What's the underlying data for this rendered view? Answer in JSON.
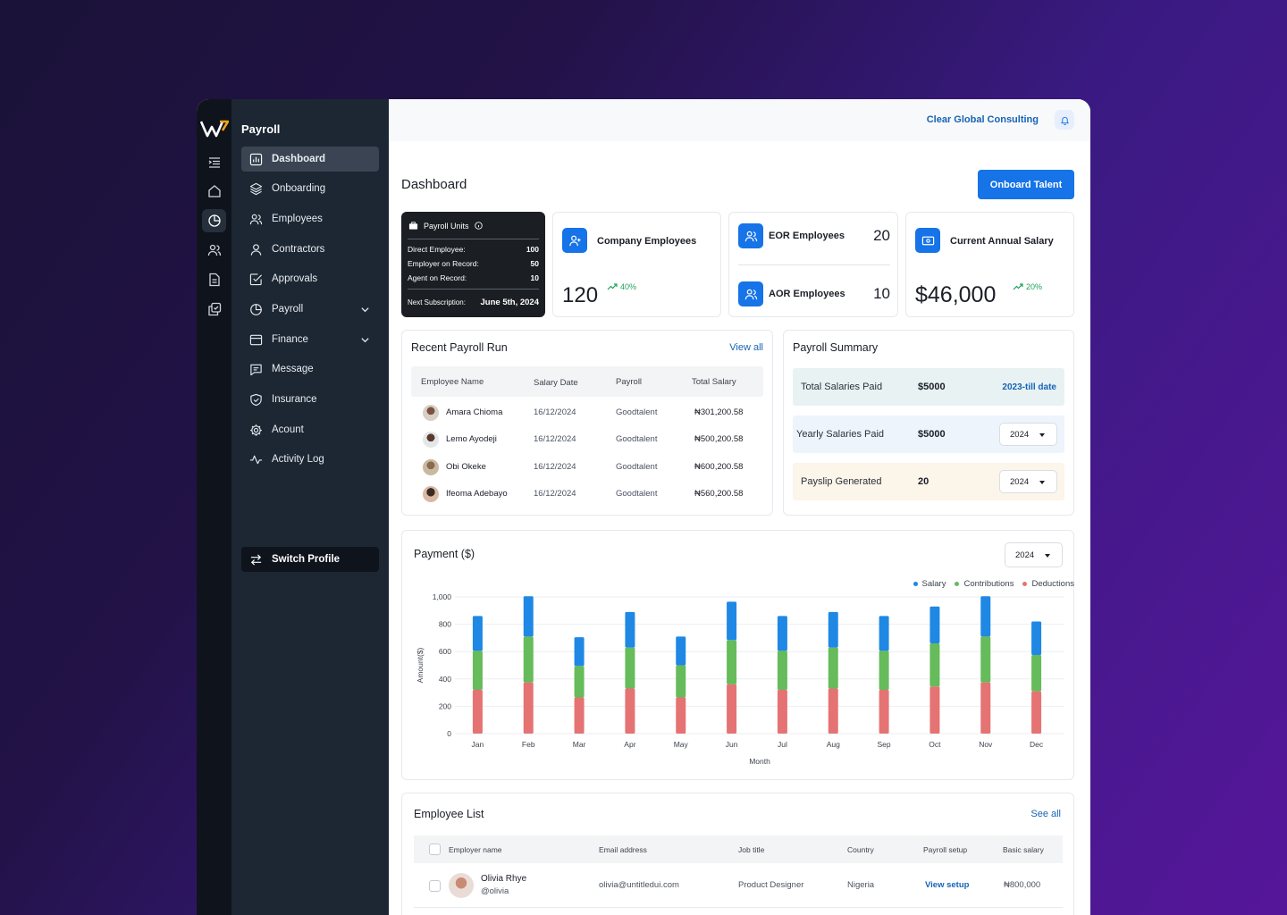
{
  "app": {
    "section": "Payroll",
    "company": "Clear Global Consulting"
  },
  "colors": {
    "accent": "#1673e8",
    "salary": "#1f88e5",
    "contributions": "#66bb5b",
    "deductions": "#e57373",
    "trend_up": "#1ea35a"
  },
  "sidebar": {
    "items": [
      {
        "label": "Dashboard",
        "icon": "bar-chart-icon",
        "active": true
      },
      {
        "label": "Onboarding",
        "icon": "layers-icon"
      },
      {
        "label": "Employees",
        "icon": "users-icon"
      },
      {
        "label": "Contractors",
        "icon": "user-icon"
      },
      {
        "label": "Approvals",
        "icon": "check-square-icon"
      },
      {
        "label": "Payroll",
        "icon": "pie-chart-icon",
        "expandable": true
      },
      {
        "label": "Finance",
        "icon": "wallet-icon",
        "expandable": true
      },
      {
        "label": "Message",
        "icon": "message-icon"
      },
      {
        "label": "Insurance",
        "icon": "shield-icon"
      },
      {
        "label": "Acount",
        "icon": "gear-icon"
      },
      {
        "label": "Activity Log",
        "icon": "activity-icon"
      }
    ],
    "switch_profile": "Switch Profile"
  },
  "dashboard": {
    "title": "Dashboard",
    "onboard_button": "Onboard Talent",
    "payroll_units": {
      "title": "Payroll Units",
      "rows": [
        {
          "label": "Direct Employee:",
          "value": "100"
        },
        {
          "label": "Employer on Record:",
          "value": "50"
        },
        {
          "label": "Agent on Record:",
          "value": "10"
        }
      ],
      "next_label": "Next Subscription:",
      "next_value": "June 5th, 2024"
    },
    "company_employees": {
      "label": "Company Employees",
      "value": "120",
      "trend": "40%"
    },
    "eor": {
      "label": "EOR Employees",
      "value": "20"
    },
    "aor": {
      "label": "AOR Employees",
      "value": "10"
    },
    "salary": {
      "label": "Current Annual Salary",
      "value": "$46,000",
      "trend": "20%"
    }
  },
  "recent_payroll": {
    "title": "Recent Payroll Run",
    "view_all": "View all",
    "columns": [
      "Employee Name",
      "Salary Date",
      "Payroll",
      "Total Salary"
    ],
    "rows": [
      {
        "name": "Amara Chioma",
        "date": "16/12/2024",
        "payroll": "Goodtalent",
        "total": "₦301,200.58"
      },
      {
        "name": "Lemo Ayodeji",
        "date": "16/12/2024",
        "payroll": "Goodtalent",
        "total": "₦500,200.58"
      },
      {
        "name": "Obi Okeke",
        "date": "16/12/2024",
        "payroll": "Goodtalent",
        "total": "₦600,200.58"
      },
      {
        "name": "Ifeoma Adebayo",
        "date": "16/12/2024",
        "payroll": "Goodtalent",
        "total": "₦560,200.58"
      }
    ]
  },
  "payroll_summary": {
    "title": "Payroll Summary",
    "rows": [
      {
        "label": "Total Salaries Paid",
        "value": "$5000",
        "extra": "2023-till date"
      },
      {
        "label": "Yearly Salaries Paid",
        "value": "$5000",
        "select": "2024"
      },
      {
        "label": "Payslip Generated",
        "value": "20",
        "select": "2024"
      }
    ]
  },
  "payment": {
    "title": "Payment ($)",
    "year": "2024"
  },
  "chart_data": {
    "type": "bar",
    "stacked": true,
    "categories": [
      "Jan",
      "Feb",
      "Mar",
      "Apr",
      "May",
      "Jun",
      "Jul",
      "Aug",
      "Sep",
      "Oct",
      "Nov",
      "Dec"
    ],
    "series": [
      {
        "name": "Deductions",
        "values": [
          320,
          375,
          265,
          330,
          265,
          360,
          320,
          330,
          320,
          345,
          375,
          310
        ]
      },
      {
        "name": "Contributions",
        "values": [
          285,
          335,
          230,
          300,
          235,
          325,
          285,
          300,
          285,
          315,
          335,
          265
        ]
      },
      {
        "name": "Salary",
        "values": [
          255,
          295,
          210,
          260,
          210,
          280,
          255,
          260,
          255,
          270,
          295,
          245
        ]
      }
    ],
    "xlabel": "Month",
    "ylabel": "Amount($)",
    "ylim": [
      0,
      1000
    ],
    "yticks": [
      "0",
      "200",
      "400",
      "600",
      "800",
      "1,000"
    ],
    "legend": "top-right",
    "legend_order": [
      "Salary",
      "Contributions",
      "Deductions"
    ],
    "grid": true
  },
  "employee_list": {
    "title": "Employee List",
    "see_all": "See all",
    "columns": [
      "Employer name",
      "Email address",
      "Job title",
      "Country",
      "Payroll setup",
      "Basic salary"
    ],
    "rows": [
      {
        "name": "Olivia Rhye",
        "handle": "@olivia",
        "email": "olivia@untitledui.com",
        "job": "Product Designer",
        "country": "Nigeria",
        "setup": "View setup",
        "salary": "₦800,000"
      }
    ]
  }
}
